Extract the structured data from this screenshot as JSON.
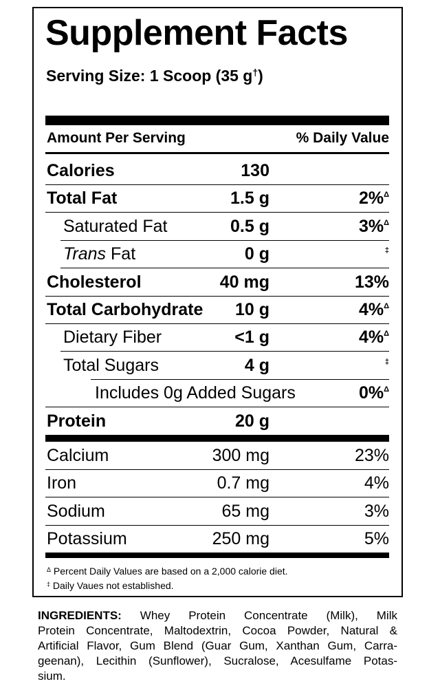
{
  "label": {
    "title": "Supplement Facts",
    "serving_size": {
      "text": "Serving Size: 1 Scoop (35 g",
      "mark": "†",
      "close": ")"
    },
    "header": {
      "left": "Amount Per Serving",
      "right": "% Daily Value"
    },
    "nutrients": [
      {
        "name": "Calories",
        "amount": "130"
      },
      {
        "name": "Total Fat",
        "amount": "1.5 g",
        "dv": "2%",
        "dv_mark": "Δ"
      },
      {
        "name": "Saturated Fat",
        "amount": "0.5 g",
        "dv": "3%",
        "dv_mark": "Δ"
      },
      {
        "name_italic": "Trans",
        "name": "Fat",
        "amount": "0 g",
        "dv_mark": "‡"
      },
      {
        "name": "Cholesterol",
        "amount": "40 mg",
        "dv": "13%"
      },
      {
        "name": "Total Carbohydrate",
        "amount": "10 g",
        "dv": "4%",
        "dv_mark": "Δ"
      },
      {
        "name": "Dietary Fiber",
        "amount": "<1 g",
        "dv": "4%",
        "dv_mark": "Δ"
      },
      {
        "name": "Total Sugars",
        "amount": "4 g",
        "dv_mark": "‡"
      },
      {
        "name": "Includes 0g Added Sugars",
        "dv": "0%",
        "dv_mark": "Δ"
      },
      {
        "name": "Protein",
        "amount": "20 g"
      }
    ],
    "minerals": [
      {
        "name": "Calcium",
        "amount": "300 mg",
        "dv": "23%"
      },
      {
        "name": "Iron",
        "amount": "0.7 mg",
        "dv": "4%"
      },
      {
        "name": "Sodium",
        "amount": "65 mg",
        "dv": "3%"
      },
      {
        "name": "Potassium",
        "amount": "250 mg",
        "dv": "5%"
      }
    ],
    "footnotes": [
      {
        "mark": "Δ",
        "text": "Percent Daily Values are based on a 2,000 calorie diet."
      },
      {
        "mark": "‡",
        "text": "Daily Vaues not established."
      }
    ]
  },
  "ingredients": {
    "label": "INGREDIENTS:",
    "lines": [
      "Whey Protein Concentrate (Milk), Milk",
      "Protein Concentrate, Maltodextrin, Cocoa Powder, Natural &",
      "Artificial Flavor, Gum Blend (Guar Gum, Xanthan Gum, Carra-",
      "geenan), Lecithin (Sunflower), Sucralose, Acesulfame Potas-",
      "sium."
    ]
  }
}
